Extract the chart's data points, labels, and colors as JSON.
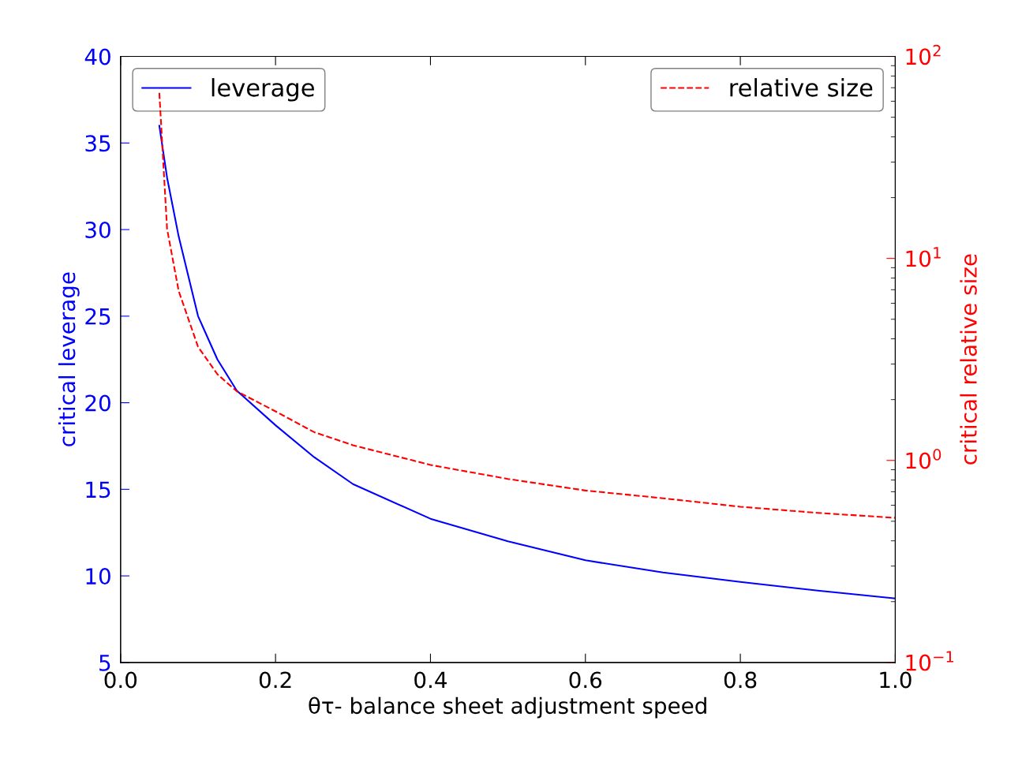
{
  "chart_data": {
    "type": "line",
    "xlabel": "θτ- balance sheet adjustment speed",
    "ylabel": "critical leverage",
    "y2label": "critical relative size",
    "x": [
      0.05,
      0.06,
      0.075,
      0.1,
      0.125,
      0.15,
      0.2,
      0.25,
      0.3,
      0.4,
      0.5,
      0.6,
      0.7,
      0.8,
      0.9,
      1.0
    ],
    "series": [
      {
        "name": "leverage",
        "color": "#0000ff",
        "line_style": "solid",
        "values": [
          36,
          33,
          29.6,
          25,
          22.5,
          20.7,
          18.7,
          16.85,
          15.3,
          13.3,
          12.0,
          10.9,
          10.2,
          9.65,
          9.15,
          8.7
        ]
      },
      {
        "name": "relative size",
        "color": "#ff0000",
        "line_style": "dashed",
        "axis": "y2",
        "values": [
          66,
          14,
          6.9,
          3.65,
          2.67,
          2.2,
          1.75,
          1.38,
          1.19,
          0.95,
          0.81,
          0.71,
          0.65,
          0.59,
          0.55,
          0.52
        ]
      }
    ],
    "xlim": [
      0.0,
      1.0
    ],
    "xticks": [
      {
        "value": 0,
        "label": "0.0"
      },
      0.2,
      0.4,
      0.6,
      0.8,
      {
        "value": 1,
        "label": "1.0"
      }
    ],
    "ylim": [
      5,
      40
    ],
    "yticks": [
      5,
      10,
      15,
      20,
      25,
      30,
      35,
      40
    ],
    "log": "y2",
    "y2lim": [
      0.1,
      100
    ],
    "y2ticks": [
      {
        "value": 0.1,
        "label": "10$^{−1}$"
      },
      {
        "value": 1,
        "label": "10$^{0}$"
      },
      {
        "value": 10,
        "label": "10$^{1}$"
      },
      {
        "value": 100,
        "label": "10$^{2}$"
      }
    ],
    "grid": false,
    "legend": "top",
    "marker": "none"
  }
}
